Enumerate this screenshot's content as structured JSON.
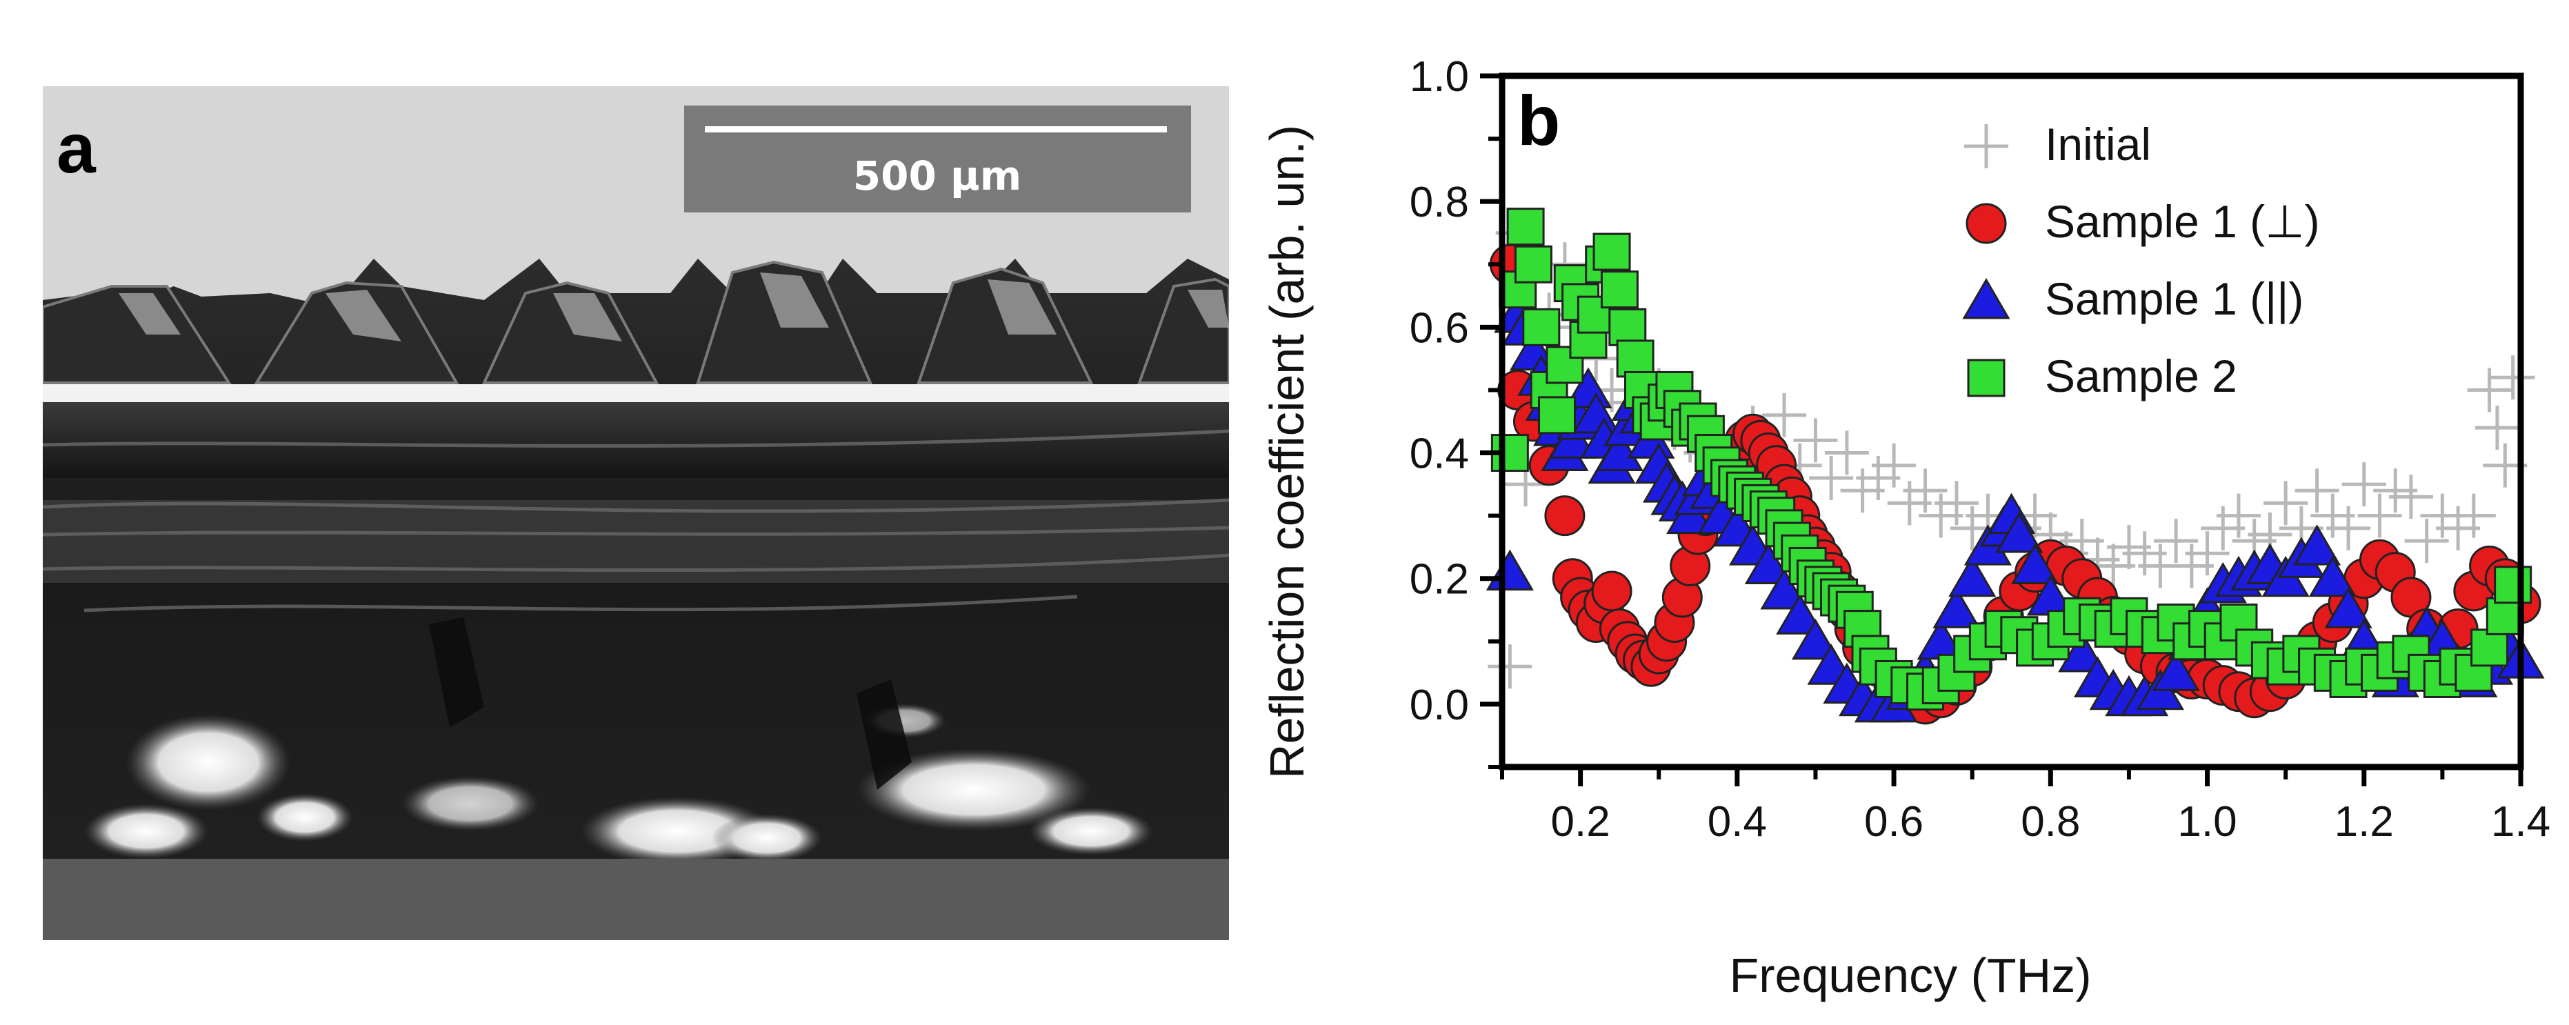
{
  "panel_a": {
    "letter": "a",
    "scale_bar_label": "500 μm",
    "colors": {
      "background": "#d6d6d6",
      "dark_fill": "#1b1b1b",
      "bottom_band": "#5a5a5a",
      "scale_box": "#7a7a7a"
    }
  },
  "panel_b": {
    "letter": "b"
  },
  "chart_data": {
    "type": "scatter",
    "xlabel": "Frequency (THz)",
    "ylabel": "Reflection coefficient (arb. un.)",
    "xlim": [
      0.1,
      1.4
    ],
    "ylim": [
      -0.1,
      1.0
    ],
    "x_ticks": [
      0.2,
      0.4,
      0.6,
      0.8,
      1.0,
      1.2,
      1.4
    ],
    "x_tick_labels": [
      "0.2",
      "0.4",
      "0.6",
      "0.8",
      "1.0",
      "1.2",
      "1.4"
    ],
    "y_ticks": [
      0.0,
      0.2,
      0.4,
      0.6,
      0.8,
      1.0
    ],
    "y_tick_labels": [
      "0.0",
      "0.2",
      "0.4",
      "0.6",
      "0.8",
      "1.0"
    ],
    "legend_position": "top-right",
    "grid": false,
    "series": [
      {
        "name": "Initial",
        "marker": "cross",
        "color": "#b8b8b8",
        "x": [
          0.11,
          0.12,
          0.13,
          0.14,
          0.16,
          0.18,
          0.2,
          0.22,
          0.24,
          0.26,
          0.28,
          0.3,
          0.32,
          0.34,
          0.36,
          0.38,
          0.4,
          0.42,
          0.44,
          0.46,
          0.48,
          0.5,
          0.52,
          0.54,
          0.56,
          0.58,
          0.6,
          0.62,
          0.64,
          0.66,
          0.68,
          0.7,
          0.72,
          0.74,
          0.76,
          0.78,
          0.8,
          0.82,
          0.84,
          0.86,
          0.88,
          0.9,
          0.92,
          0.94,
          0.96,
          0.98,
          1.0,
          1.02,
          1.04,
          1.06,
          1.08,
          1.1,
          1.12,
          1.14,
          1.16,
          1.18,
          1.2,
          1.22,
          1.24,
          1.26,
          1.28,
          1.3,
          1.32,
          1.34,
          1.36,
          1.37,
          1.38,
          1.39
        ],
        "y": [
          0.06,
          0.75,
          0.35,
          0.48,
          0.62,
          0.7,
          0.6,
          0.55,
          0.5,
          0.48,
          0.45,
          0.5,
          0.44,
          0.42,
          0.4,
          0.42,
          0.38,
          0.44,
          0.4,
          0.46,
          0.38,
          0.42,
          0.36,
          0.4,
          0.34,
          0.36,
          0.38,
          0.32,
          0.34,
          0.3,
          0.32,
          0.28,
          0.3,
          0.26,
          0.28,
          0.3,
          0.27,
          0.24,
          0.26,
          0.23,
          0.22,
          0.25,
          0.24,
          0.22,
          0.26,
          0.22,
          0.24,
          0.28,
          0.3,
          0.26,
          0.27,
          0.32,
          0.28,
          0.34,
          0.3,
          0.28,
          0.35,
          0.3,
          0.34,
          0.33,
          0.26,
          0.3,
          0.28,
          0.3,
          0.5,
          0.44,
          0.38,
          0.52
        ]
      },
      {
        "name": "Sample 1 (⊥)",
        "marker": "circle",
        "color": "#e41a1c",
        "x": [
          0.11,
          0.12,
          0.14,
          0.16,
          0.18,
          0.19,
          0.2,
          0.21,
          0.22,
          0.23,
          0.24,
          0.25,
          0.26,
          0.27,
          0.28,
          0.29,
          0.3,
          0.31,
          0.32,
          0.33,
          0.34,
          0.35,
          0.36,
          0.37,
          0.38,
          0.39,
          0.4,
          0.41,
          0.42,
          0.43,
          0.44,
          0.45,
          0.46,
          0.47,
          0.48,
          0.49,
          0.5,
          0.51,
          0.52,
          0.53,
          0.54,
          0.55,
          0.56,
          0.58,
          0.6,
          0.62,
          0.64,
          0.66,
          0.68,
          0.7,
          0.72,
          0.74,
          0.76,
          0.78,
          0.8,
          0.82,
          0.84,
          0.86,
          0.88,
          0.9,
          0.92,
          0.94,
          0.96,
          0.98,
          1.0,
          1.02,
          1.04,
          1.06,
          1.08,
          1.1,
          1.12,
          1.14,
          1.16,
          1.18,
          1.2,
          1.22,
          1.24,
          1.26,
          1.28,
          1.3,
          1.32,
          1.34,
          1.36,
          1.38,
          1.4
        ],
        "y": [
          0.7,
          0.5,
          0.45,
          0.38,
          0.3,
          0.2,
          0.17,
          0.15,
          0.13,
          0.16,
          0.18,
          0.12,
          0.1,
          0.08,
          0.07,
          0.06,
          0.08,
          0.1,
          0.13,
          0.17,
          0.22,
          0.27,
          0.3,
          0.32,
          0.34,
          0.36,
          0.38,
          0.42,
          0.43,
          0.42,
          0.4,
          0.38,
          0.35,
          0.33,
          0.3,
          0.27,
          0.25,
          0.23,
          0.21,
          0.18,
          0.15,
          0.12,
          0.09,
          0.06,
          0.03,
          0.01,
          0.0,
          0.01,
          0.03,
          0.06,
          0.1,
          0.14,
          0.18,
          0.21,
          0.23,
          0.22,
          0.2,
          0.17,
          0.14,
          0.11,
          0.08,
          0.06,
          0.05,
          0.04,
          0.04,
          0.03,
          0.02,
          0.01,
          0.02,
          0.04,
          0.07,
          0.1,
          0.13,
          0.16,
          0.2,
          0.23,
          0.21,
          0.17,
          0.12,
          0.09,
          0.12,
          0.18,
          0.22,
          0.2,
          0.16
        ]
      },
      {
        "name": "Sample 1 (||)",
        "marker": "triangle",
        "color": "#1c1ce0",
        "x": [
          0.11,
          0.12,
          0.13,
          0.14,
          0.15,
          0.16,
          0.17,
          0.18,
          0.19,
          0.2,
          0.21,
          0.22,
          0.23,
          0.24,
          0.25,
          0.26,
          0.27,
          0.28,
          0.29,
          0.3,
          0.31,
          0.32,
          0.33,
          0.34,
          0.35,
          0.36,
          0.37,
          0.38,
          0.4,
          0.42,
          0.44,
          0.46,
          0.48,
          0.5,
          0.52,
          0.54,
          0.56,
          0.58,
          0.6,
          0.62,
          0.64,
          0.66,
          0.68,
          0.7,
          0.72,
          0.74,
          0.75,
          0.76,
          0.78,
          0.8,
          0.82,
          0.84,
          0.86,
          0.88,
          0.9,
          0.92,
          0.94,
          0.96,
          0.98,
          1.0,
          1.02,
          1.04,
          1.06,
          1.08,
          1.1,
          1.12,
          1.14,
          1.16,
          1.18,
          1.2,
          1.22,
          1.24,
          1.26,
          1.28,
          1.3,
          1.32,
          1.34,
          1.36,
          1.38,
          1.4
        ],
        "y": [
          0.21,
          0.62,
          0.6,
          0.56,
          0.52,
          0.48,
          0.44,
          0.4,
          0.42,
          0.45,
          0.5,
          0.46,
          0.42,
          0.38,
          0.4,
          0.44,
          0.48,
          0.46,
          0.42,
          0.38,
          0.35,
          0.33,
          0.32,
          0.3,
          0.33,
          0.36,
          0.34,
          0.3,
          0.28,
          0.25,
          0.22,
          0.18,
          0.14,
          0.1,
          0.06,
          0.03,
          0.01,
          0.0,
          0.0,
          0.02,
          0.05,
          0.1,
          0.15,
          0.2,
          0.25,
          0.28,
          0.3,
          0.27,
          0.22,
          0.17,
          0.12,
          0.08,
          0.04,
          0.02,
          0.01,
          0.01,
          0.02,
          0.05,
          0.1,
          0.15,
          0.19,
          0.2,
          0.21,
          0.22,
          0.2,
          0.23,
          0.25,
          0.2,
          0.15,
          0.1,
          0.06,
          0.04,
          0.08,
          0.12,
          0.1,
          0.06,
          0.04,
          0.06,
          0.1,
          0.07
        ]
      },
      {
        "name": "Sample 2",
        "marker": "square",
        "color": "#33dd33",
        "x": [
          0.11,
          0.12,
          0.13,
          0.14,
          0.15,
          0.16,
          0.17,
          0.18,
          0.19,
          0.2,
          0.21,
          0.22,
          0.23,
          0.24,
          0.25,
          0.26,
          0.27,
          0.28,
          0.29,
          0.3,
          0.31,
          0.32,
          0.33,
          0.34,
          0.35,
          0.36,
          0.37,
          0.38,
          0.39,
          0.4,
          0.41,
          0.42,
          0.43,
          0.44,
          0.45,
          0.46,
          0.47,
          0.48,
          0.49,
          0.5,
          0.51,
          0.52,
          0.53,
          0.54,
          0.55,
          0.56,
          0.57,
          0.58,
          0.6,
          0.62,
          0.64,
          0.66,
          0.68,
          0.7,
          0.72,
          0.74,
          0.76,
          0.78,
          0.8,
          0.82,
          0.84,
          0.86,
          0.88,
          0.9,
          0.92,
          0.94,
          0.96,
          0.98,
          1.0,
          1.02,
          1.04,
          1.06,
          1.08,
          1.1,
          1.12,
          1.14,
          1.16,
          1.18,
          1.2,
          1.22,
          1.24,
          1.26,
          1.28,
          1.3,
          1.32,
          1.34,
          1.36,
          1.38,
          1.39
        ],
        "y": [
          0.4,
          0.66,
          0.76,
          0.7,
          0.6,
          0.5,
          0.46,
          0.54,
          0.67,
          0.64,
          0.58,
          0.62,
          0.7,
          0.72,
          0.66,
          0.6,
          0.55,
          0.5,
          0.46,
          0.45,
          0.48,
          0.5,
          0.47,
          0.44,
          0.45,
          0.43,
          0.4,
          0.38,
          0.36,
          0.35,
          0.34,
          0.33,
          0.32,
          0.31,
          0.3,
          0.28,
          0.26,
          0.24,
          0.22,
          0.2,
          0.19,
          0.18,
          0.17,
          0.16,
          0.15,
          0.12,
          0.08,
          0.06,
          0.04,
          0.03,
          0.02,
          0.03,
          0.05,
          0.08,
          0.1,
          0.12,
          0.11,
          0.09,
          0.1,
          0.12,
          0.14,
          0.13,
          0.12,
          0.14,
          0.12,
          0.11,
          0.13,
          0.1,
          0.12,
          0.1,
          0.13,
          0.09,
          0.07,
          0.06,
          0.08,
          0.06,
          0.05,
          0.04,
          0.06,
          0.05,
          0.07,
          0.08,
          0.05,
          0.04,
          0.06,
          0.05,
          0.09,
          0.14,
          0.19
        ]
      }
    ]
  }
}
